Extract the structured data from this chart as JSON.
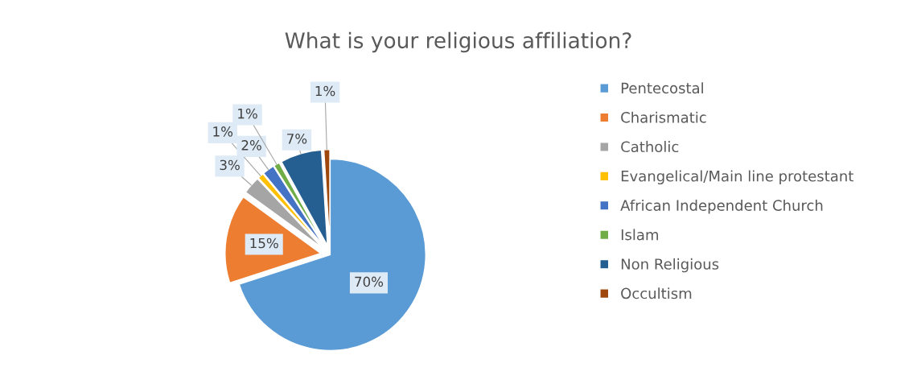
{
  "chart_data": {
    "type": "pie",
    "title": "What is your religious affiliation?",
    "categories": [
      "Pentecostal",
      "Charismatic",
      "Catholic",
      "Evangelical/Main line protestant",
      "African Independent Church",
      "Islam",
      "Non Religious",
      "Occultism"
    ],
    "values": [
      70,
      15,
      3,
      1,
      2,
      1,
      7,
      1
    ],
    "value_labels": [
      "70%",
      "15%",
      "3%",
      "1%",
      "2%",
      "1%",
      "7%",
      "1%"
    ],
    "colors": [
      "#5b9bd5",
      "#ed7d31",
      "#a5a5a5",
      "#ffc000",
      "#4472c4",
      "#70ad47",
      "#255e91",
      "#9e480e"
    ],
    "legend": "right"
  }
}
